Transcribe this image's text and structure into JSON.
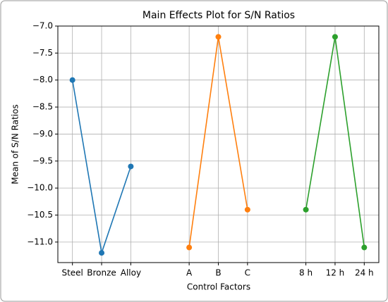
{
  "chart_data": {
    "type": "line",
    "title": "Main Effects Plot for S/N Ratios",
    "xlabel": "Control Factors",
    "ylabel": "Mean of S/N Ratios",
    "categories": [
      "Steel",
      "Bronze",
      "Alloy",
      null,
      "A",
      "B",
      "C",
      null,
      "8 h",
      "12 h",
      "24 h"
    ],
    "series": [
      {
        "color": "#1f77b4",
        "values": [
          -8.0,
          -11.2,
          -9.6,
          null,
          null,
          null,
          null,
          null,
          null,
          null,
          null
        ]
      },
      {
        "color": "#ff7f0e",
        "values": [
          null,
          null,
          null,
          null,
          -11.1,
          -7.2,
          -10.4,
          null,
          null,
          null,
          null
        ]
      },
      {
        "color": "#2ca02c",
        "values": [
          null,
          null,
          null,
          null,
          null,
          null,
          null,
          null,
          -10.4,
          -7.2,
          -11.1
        ]
      }
    ],
    "ylim": [
      -11.38,
      -7.0
    ],
    "yticks": [
      {
        "value": -7.0,
        "label": "−7.0"
      },
      {
        "value": -7.5,
        "label": "−7.5"
      },
      {
        "value": -8.0,
        "label": "−8.0"
      },
      {
        "value": -8.5,
        "label": "−8.5"
      },
      {
        "value": -9.0,
        "label": "−9.0"
      },
      {
        "value": -9.5,
        "label": "−9.5"
      },
      {
        "value": -10.0,
        "label": "−10.0"
      },
      {
        "value": -10.5,
        "label": "−10.5"
      },
      {
        "value": -11.0,
        "label": "−11.0"
      }
    ],
    "grid": true
  }
}
